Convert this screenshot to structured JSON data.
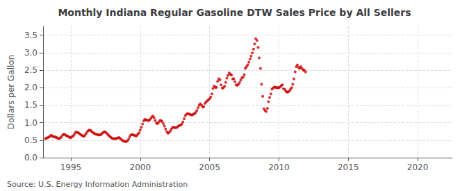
{
  "chart_data": {
    "type": "scatter",
    "title": "Monthly Indiana Regular Gasoline DTW Sales Price by All Sellers",
    "ylabel": "Dollars per Gallon",
    "annotations": [
      "Source: U.S. Energy Information Administration"
    ],
    "color": "#cc0000",
    "grid": true,
    "xlim": [
      1993.0,
      2022.5
    ],
    "ylim": [
      0.0,
      3.75
    ],
    "xticks": [
      1995,
      2000,
      2005,
      2010,
      2015,
      2020
    ],
    "yticks": [
      {
        "value": 0.0,
        "label": "0.0"
      },
      0.5,
      {
        "value": 1.0,
        "label": "1.0"
      },
      1.5,
      {
        "value": 2.0,
        "label": "2.0"
      },
      2.5,
      {
        "value": 3.0,
        "label": "3.0"
      },
      3.5
    ],
    "x": [
      1993.17,
      1993.25,
      1993.33,
      1993.42,
      1993.5,
      1993.58,
      1993.67,
      1993.75,
      1993.83,
      1993.92,
      1994.0,
      1994.08,
      1994.17,
      1994.25,
      1994.33,
      1994.42,
      1994.5,
      1994.58,
      1994.67,
      1994.75,
      1994.83,
      1994.92,
      1995.0,
      1995.08,
      1995.17,
      1995.25,
      1995.33,
      1995.42,
      1995.5,
      1995.58,
      1995.67,
      1995.75,
      1995.83,
      1995.92,
      1996.0,
      1996.08,
      1996.17,
      1996.25,
      1996.33,
      1996.42,
      1996.5,
      1996.58,
      1996.67,
      1996.75,
      1996.83,
      1996.92,
      1997.0,
      1997.08,
      1997.17,
      1997.25,
      1997.33,
      1997.42,
      1997.5,
      1997.58,
      1997.67,
      1997.75,
      1997.83,
      1997.92,
      1998.0,
      1998.08,
      1998.17,
      1998.25,
      1998.33,
      1998.42,
      1998.5,
      1998.58,
      1998.67,
      1998.75,
      1998.83,
      1998.92,
      1999.0,
      1999.08,
      1999.17,
      1999.25,
      1999.33,
      1999.42,
      1999.5,
      1999.58,
      1999.67,
      1999.75,
      1999.83,
      1999.92,
      2000.0,
      2000.08,
      2000.17,
      2000.25,
      2000.33,
      2000.42,
      2000.5,
      2000.58,
      2000.67,
      2000.75,
      2000.83,
      2000.92,
      2001.0,
      2001.08,
      2001.17,
      2001.25,
      2001.33,
      2001.42,
      2001.5,
      2001.58,
      2001.67,
      2001.75,
      2001.83,
      2001.92,
      2002.0,
      2002.08,
      2002.17,
      2002.25,
      2002.33,
      2002.42,
      2002.5,
      2002.58,
      2002.67,
      2002.75,
      2002.83,
      2002.92,
      2003.0,
      2003.08,
      2003.17,
      2003.25,
      2003.33,
      2003.42,
      2003.5,
      2003.58,
      2003.67,
      2003.75,
      2003.83,
      2003.92,
      2004.0,
      2004.08,
      2004.17,
      2004.25,
      2004.33,
      2004.42,
      2004.5,
      2004.58,
      2004.67,
      2004.75,
      2004.83,
      2004.92,
      2005.0,
      2005.08,
      2005.17,
      2005.25,
      2005.33,
      2005.42,
      2005.5,
      2005.58,
      2005.67,
      2005.75,
      2005.83,
      2005.92,
      2006.0,
      2006.08,
      2006.17,
      2006.25,
      2006.33,
      2006.42,
      2006.5,
      2006.58,
      2006.67,
      2006.75,
      2006.83,
      2006.92,
      2007.0,
      2007.08,
      2007.17,
      2007.25,
      2007.33,
      2007.42,
      2007.5,
      2007.58,
      2007.67,
      2007.75,
      2007.83,
      2007.92,
      2008.0,
      2008.08,
      2008.17,
      2008.25,
      2008.33,
      2008.42,
      2008.5,
      2008.58,
      2008.67,
      2008.75,
      2008.83,
      2008.92,
      2009.0,
      2009.08,
      2009.17,
      2009.25,
      2009.33,
      2009.42,
      2009.5,
      2009.58,
      2009.67,
      2009.75,
      2009.83,
      2009.92,
      2010.0,
      2010.08,
      2010.17,
      2010.25,
      2010.33,
      2010.42,
      2010.5,
      2010.58,
      2010.67,
      2010.75,
      2010.83,
      2010.92,
      2011.0,
      2011.08,
      2011.17,
      2011.25,
      2011.33,
      2011.42,
      2011.5,
      2011.58,
      2011.67,
      2011.75,
      2011.83,
      2011.92
    ],
    "values": [
      0.54,
      0.56,
      0.57,
      0.59,
      0.61,
      0.64,
      0.62,
      0.59,
      0.6,
      0.58,
      0.57,
      0.55,
      0.54,
      0.57,
      0.6,
      0.65,
      0.67,
      0.66,
      0.63,
      0.62,
      0.6,
      0.58,
      0.57,
      0.6,
      0.62,
      0.66,
      0.72,
      0.73,
      0.72,
      0.7,
      0.67,
      0.65,
      0.63,
      0.61,
      0.63,
      0.68,
      0.73,
      0.77,
      0.79,
      0.78,
      0.75,
      0.72,
      0.7,
      0.68,
      0.67,
      0.66,
      0.65,
      0.65,
      0.66,
      0.69,
      0.72,
      0.74,
      0.73,
      0.7,
      0.66,
      0.63,
      0.6,
      0.57,
      0.55,
      0.54,
      0.54,
      0.55,
      0.55,
      0.57,
      0.57,
      0.54,
      0.51,
      0.48,
      0.47,
      0.46,
      0.46,
      0.48,
      0.53,
      0.6,
      0.65,
      0.66,
      0.65,
      0.64,
      0.62,
      0.63,
      0.67,
      0.71,
      0.79,
      0.87,
      0.96,
      1.05,
      1.09,
      1.08,
      1.07,
      1.06,
      1.07,
      1.11,
      1.16,
      1.19,
      1.14,
      1.06,
      0.99,
      0.97,
      1.01,
      1.06,
      1.06,
      1.03,
      0.97,
      0.9,
      0.82,
      0.74,
      0.7,
      0.72,
      0.76,
      0.82,
      0.86,
      0.87,
      0.86,
      0.86,
      0.87,
      0.9,
      0.92,
      0.93,
      0.96,
      1.02,
      1.11,
      1.2,
      1.24,
      1.26,
      1.25,
      1.24,
      1.22,
      1.22,
      1.24,
      1.26,
      1.29,
      1.35,
      1.43,
      1.5,
      1.54,
      1.5,
      1.45,
      1.46,
      1.55,
      1.59,
      1.62,
      1.65,
      1.68,
      1.73,
      1.82,
      1.98,
      2.05,
      2.01,
      2.01,
      2.18,
      2.25,
      2.22,
      2.08,
      1.99,
      2.0,
      2.04,
      2.15,
      2.27,
      2.35,
      2.42,
      2.38,
      2.36,
      2.25,
      2.25,
      2.17,
      2.08,
      2.07,
      2.1,
      2.15,
      2.22,
      2.28,
      2.3,
      2.37,
      2.55,
      2.6,
      2.65,
      2.73,
      2.82,
      2.9,
      2.99,
      3.1,
      3.25,
      3.4,
      3.35,
      3.15,
      2.85,
      2.55,
      2.1,
      1.75,
      1.4,
      1.35,
      1.32,
      1.41,
      1.6,
      1.72,
      1.82,
      1.96,
      1.99,
      2.02,
      2.01,
      2.0,
      2.0,
      2.0,
      2.02,
      2.06,
      2.08,
      1.97,
      1.95,
      1.9,
      1.87,
      1.88,
      1.9,
      1.95,
      2.0,
      2.1,
      2.25,
      2.45,
      2.6,
      2.65,
      2.58,
      2.55,
      2.6,
      2.55,
      2.5,
      2.5,
      2.45
    ]
  }
}
